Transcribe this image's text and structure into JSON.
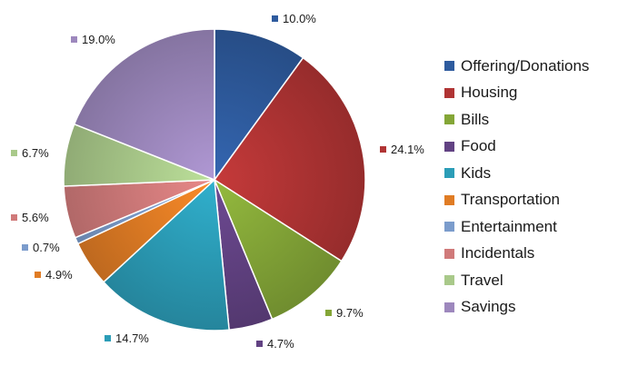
{
  "chart_data": {
    "type": "pie",
    "title": "",
    "categories": [
      "Offering/Donations",
      "Housing",
      "Bills",
      "Food",
      "Kids",
      "Transportation",
      "Entertainment",
      "Incidentals",
      "Travel",
      "Savings"
    ],
    "values": [
      10.0,
      24.1,
      9.7,
      4.7,
      14.7,
      4.9,
      0.7,
      5.6,
      6.7,
      19.0
    ],
    "value_labels": [
      "10.0%",
      "24.1%",
      "9.7%",
      "4.7%",
      "14.7%",
      "4.9%",
      "0.7%",
      "5.6%",
      "6.7%",
      "19.0%"
    ],
    "colors": [
      "#2e5b9e",
      "#b03434",
      "#84a637",
      "#624283",
      "#2b9db7",
      "#e07c24",
      "#7b9ccc",
      "#d07a7a",
      "#a9c98a",
      "#9d88bd"
    ],
    "legend_position": "right",
    "slice_borders": "white",
    "start_angle": "top (12 o'clock), clockwise"
  }
}
